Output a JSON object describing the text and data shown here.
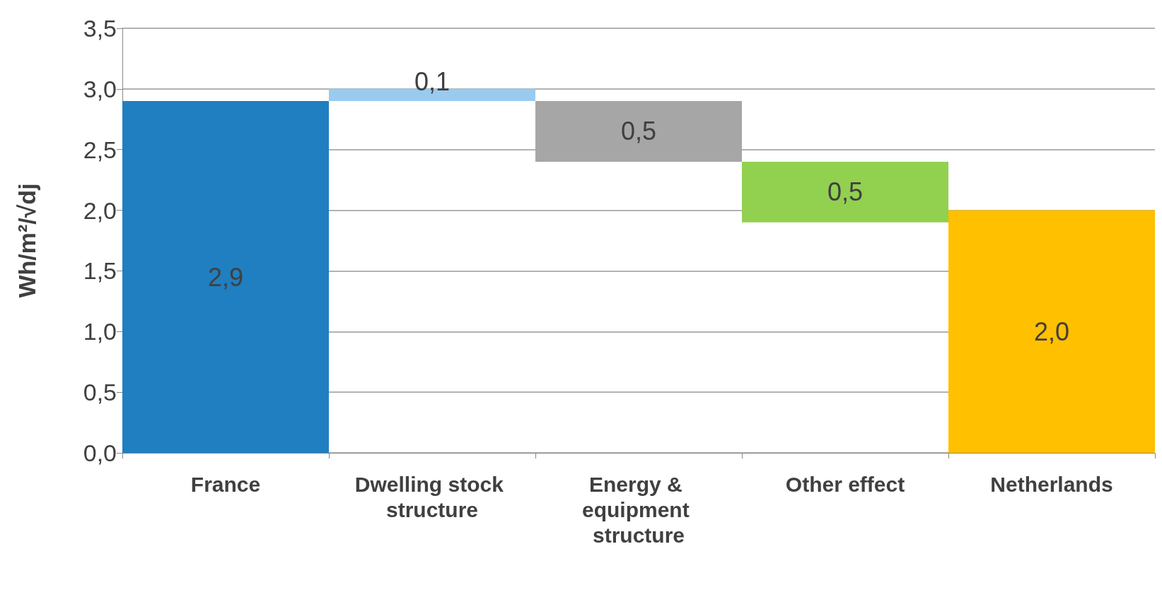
{
  "chart_data": {
    "type": "bar",
    "ylabel": "Wh/m²/√dj",
    "categories": [
      "France",
      "Dwelling stock structure",
      "Energy & equipment structure",
      "Other effect",
      "Netherlands"
    ],
    "values": [
      2.9,
      0.1,
      0.5,
      0.5,
      2.0
    ],
    "base": [
      0,
      2.9,
      2.4,
      1.9,
      0
    ],
    "colors": [
      "#1f7fc0",
      "#99cbef",
      "#a6a6a6",
      "#92d050",
      "#ffc000"
    ],
    "value_labels": [
      "2,9",
      "0,1",
      "0,5",
      "0,5",
      "2,0"
    ],
    "ylim": [
      0,
      3.5
    ],
    "yticks": [
      {
        "value": 0,
        "label": "0,0"
      },
      {
        "value": 0.5,
        "label": "0,5"
      },
      {
        "value": 1,
        "label": "1,0"
      },
      {
        "value": 1.5,
        "label": "1,5"
      },
      {
        "value": 2,
        "label": "2,0"
      },
      {
        "value": 2.5,
        "label": "2,5"
      },
      {
        "value": 3,
        "label": "3,0"
      },
      {
        "value": 3.5,
        "label": "3,5"
      }
    ],
    "grid": true
  }
}
